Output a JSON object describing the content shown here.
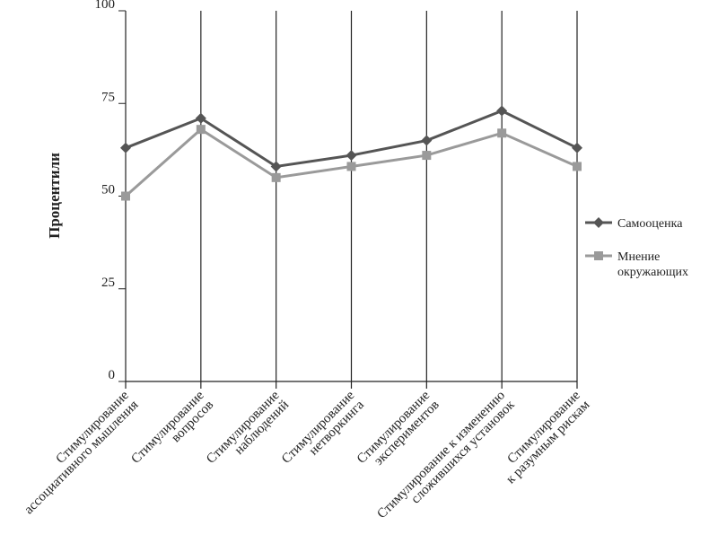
{
  "chart_data": {
    "type": "line",
    "y_label": "Процентили",
    "categories": [
      "Стимулирование\nассоциативного мышления",
      "Стимулирование\nвопросов",
      "Стимулирование\nнаблюдений",
      "Стимулирование\nнетворкинга",
      "Стимулирование\nэкспериментов",
      "Стимулирование к изменению\nсложившихся установок",
      "Стимулирование\nк разумным рискам"
    ],
    "series": [
      {
        "name": "Самооценка",
        "color": "#555555",
        "marker": "diamond",
        "values": [
          63,
          71,
          58,
          61,
          65,
          73,
          63
        ]
      },
      {
        "name": "Мнение\nокружающих",
        "color": "#9a9a9a",
        "marker": "square",
        "values": [
          50,
          68,
          55,
          58,
          61,
          67,
          58
        ]
      }
    ],
    "ylim": [
      0,
      100
    ],
    "yticks": [
      0,
      25,
      50,
      75,
      100
    ],
    "grid": true,
    "legend": "right"
  }
}
